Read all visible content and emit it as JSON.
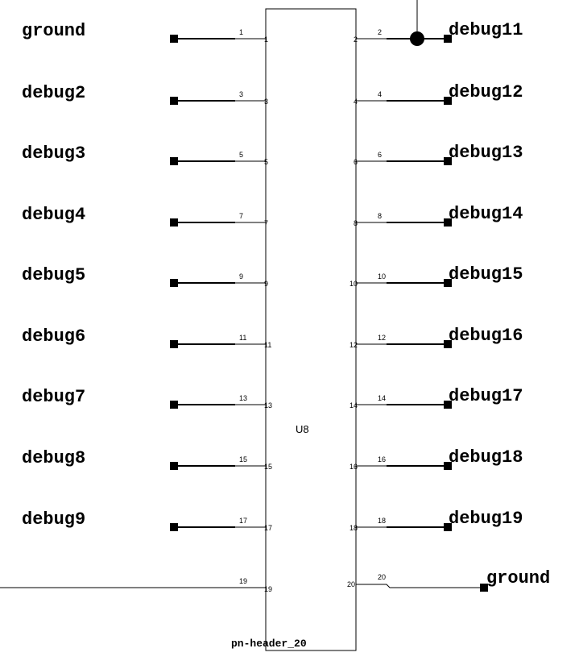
{
  "component": {
    "ref": "U8",
    "part_number": "pn-header_20"
  },
  "pins": [
    {
      "number": "1",
      "net": "ground"
    },
    {
      "number": "2",
      "net": "debug11"
    },
    {
      "number": "3",
      "net": "debug2"
    },
    {
      "number": "4",
      "net": "debug12"
    },
    {
      "number": "5",
      "net": "debug3"
    },
    {
      "number": "6",
      "net": "debug13"
    },
    {
      "number": "7",
      "net": "debug4"
    },
    {
      "number": "8",
      "net": "debug14"
    },
    {
      "number": "9",
      "net": "debug5"
    },
    {
      "number": "10",
      "net": "debug15"
    },
    {
      "number": "11",
      "net": "debug6"
    },
    {
      "number": "12",
      "net": "debug16"
    },
    {
      "number": "13",
      "net": "debug7"
    },
    {
      "number": "14",
      "net": "debug17"
    },
    {
      "number": "15",
      "net": "debug8"
    },
    {
      "number": "16",
      "net": "debug18"
    },
    {
      "number": "17",
      "net": "debug9"
    },
    {
      "number": "18",
      "net": "debug19"
    },
    {
      "number": "19",
      "net": ""
    },
    {
      "number": "20",
      "net": "ground"
    }
  ]
}
